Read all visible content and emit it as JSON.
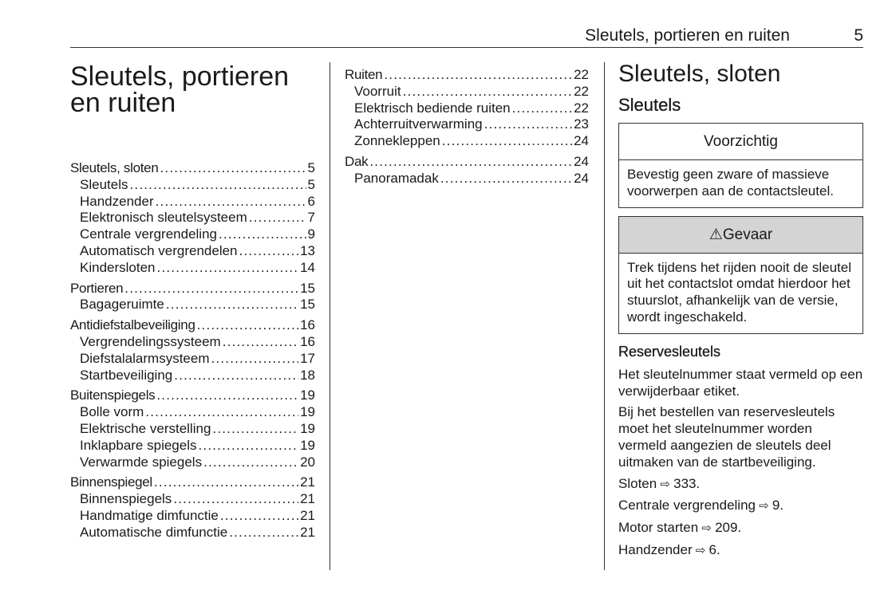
{
  "header": {
    "title": "Sleutels, portieren en ruiten",
    "page_number": "5"
  },
  "chapter_title_lines": [
    "Sleutels, portieren",
    "en ruiten"
  ],
  "toc_col1": [
    {
      "title": "Sleutels, sloten",
      "page": "5",
      "items": [
        {
          "label": "Sleutels",
          "page": "5"
        },
        {
          "label": "Handzender",
          "page": "6"
        },
        {
          "label": "Elektronisch sleutelsysteem",
          "page": "7"
        },
        {
          "label": "Centrale vergrendeling",
          "page": "9"
        },
        {
          "label": "Automatisch vergrendelen",
          "page": "13"
        },
        {
          "label": "Kindersloten",
          "page": "14"
        }
      ]
    },
    {
      "title": "Portieren",
      "page": "15",
      "items": [
        {
          "label": "Bagageruimte",
          "page": "15"
        }
      ]
    },
    {
      "title": "Antidiefstalbeveiliging",
      "page": "16",
      "items": [
        {
          "label": "Vergrendelingssysteem",
          "page": "16"
        },
        {
          "label": "Diefstalalarmsysteem",
          "page": "17"
        },
        {
          "label": "Startbeveiliging",
          "page": "18"
        }
      ]
    },
    {
      "title": "Buitenspiegels",
      "page": "19",
      "items": [
        {
          "label": "Bolle vorm",
          "page": "19"
        },
        {
          "label": "Elektrische verstelling",
          "page": "19"
        },
        {
          "label": "Inklapbare spiegels",
          "page": "19"
        },
        {
          "label": "Verwarmde spiegels",
          "page": "20"
        }
      ]
    },
    {
      "title": "Binnenspiegel",
      "page": "21",
      "items": [
        {
          "label": "Binnenspiegels",
          "page": "21"
        },
        {
          "label": "Handmatige dimfunctie",
          "page": "21"
        },
        {
          "label": "Automatische dimfunctie",
          "page": "21"
        }
      ]
    }
  ],
  "toc_col2": [
    {
      "title": "Ruiten",
      "page": "22",
      "items": [
        {
          "label": "Voorruit",
          "page": "22"
        },
        {
          "label": "Elektrisch bediende ruiten",
          "page": "22"
        },
        {
          "label": "Achterruitverwarming",
          "page": "23"
        },
        {
          "label": "Zonnekleppen",
          "page": "24"
        }
      ]
    },
    {
      "title": "Dak",
      "page": "24",
      "items": [
        {
          "label": "Panoramadak",
          "page": "24"
        }
      ]
    }
  ],
  "section": {
    "title": "Sleutels, sloten",
    "subtitle": "Sleutels",
    "caution": {
      "heading": "Voorzichtig",
      "text": "Bevestig geen zware of massieve voorwerpen aan de contactsleutel."
    },
    "danger": {
      "icon": "warning-triangle-icon",
      "heading": "Gevaar",
      "text": "Trek tijdens het rijden nooit de sleutel uit het contactslot omdat hierdoor het stuurslot, afhankelijk van de versie, wordt ingeschakeld."
    },
    "spare_heading": "Reservesleutels",
    "paragraphs": [
      "Het sleutelnummer staat vermeld op een verwijderbaar etiket.",
      "Bij het bestellen van reservesleutels moet het sleutelnummer worden vermeld aangezien de sleutels deel uitmaken van de startbeveiliging."
    ],
    "references": [
      {
        "text": "Sloten",
        "page": "333."
      },
      {
        "text": "Centrale vergrendeling",
        "page": "9."
      },
      {
        "text": "Motor starten",
        "page": "209."
      },
      {
        "text": "Handzender",
        "page": "6."
      }
    ]
  }
}
